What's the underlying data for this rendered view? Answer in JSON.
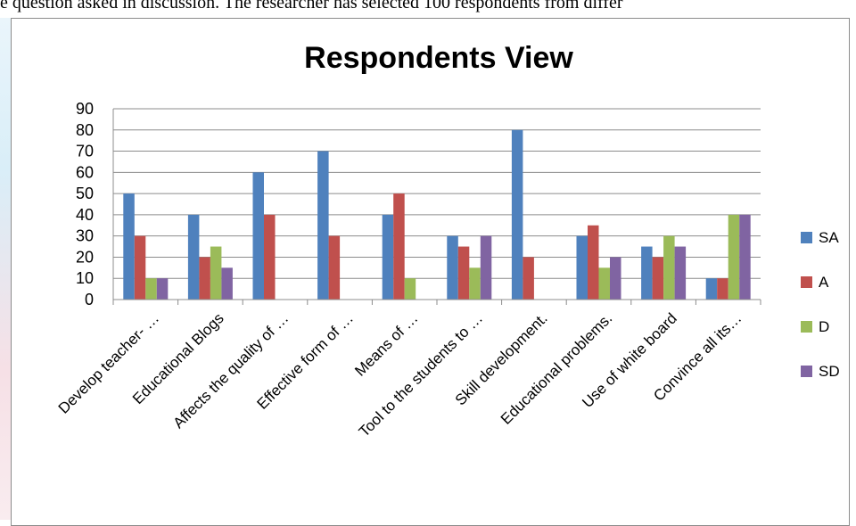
{
  "page_text": "e question asked in discussion. The researcher has selected 100 respondents from differ",
  "chart_data": {
    "type": "bar",
    "title": "Respondents View",
    "xlabel": "",
    "ylabel": "",
    "ylim": [
      0,
      90
    ],
    "ytick_step": 10,
    "grid": true,
    "legend_position": "right",
    "categories": [
      "Develop teacher- …",
      "Educational Blogs",
      "Affects the quality of …",
      "Effective form of …",
      "Means of …",
      "Tool to the students to …",
      "Skill development.",
      "Educational problems.",
      "Use of white board",
      "Convince all its…"
    ],
    "series": [
      {
        "name": "SA",
        "color": "#4f81bd",
        "values": [
          50,
          40,
          60,
          70,
          40,
          30,
          80,
          30,
          25,
          10
        ]
      },
      {
        "name": "A",
        "color": "#c0504d",
        "values": [
          30,
          20,
          40,
          30,
          50,
          25,
          20,
          35,
          20,
          10
        ]
      },
      {
        "name": "D",
        "color": "#9bbb59",
        "values": [
          10,
          25,
          0,
          0,
          10,
          15,
          0,
          15,
          30,
          40
        ]
      },
      {
        "name": "SD",
        "color": "#8064a2",
        "values": [
          10,
          15,
          0,
          0,
          0,
          30,
          0,
          20,
          25,
          40
        ]
      }
    ]
  }
}
